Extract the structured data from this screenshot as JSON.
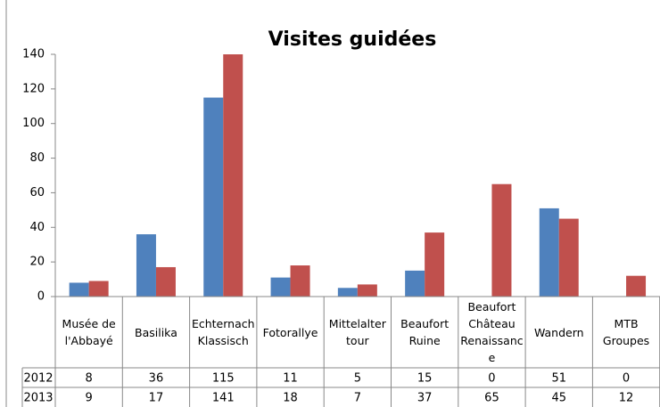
{
  "chart_data": {
    "type": "bar",
    "title": "Visites guidées",
    "categories": [
      "Musée de l'Abbayé",
      "Basilika",
      "Echternach Klassisch",
      "Fotorallye",
      "Mittelalter tour",
      "Beaufort Ruine",
      "Beaufort Château Renaissance",
      "Wandern",
      "MTB Groupes"
    ],
    "series": [
      {
        "name": "2012",
        "color": "#4f81bd",
        "values": [
          8,
          36,
          115,
          11,
          5,
          15,
          0,
          51,
          0
        ]
      },
      {
        "name": "2013",
        "color": "#c0504d",
        "values": [
          9,
          17,
          141,
          18,
          7,
          37,
          65,
          45,
          12
        ]
      }
    ],
    "ylim": [
      0,
      140
    ],
    "yticks": [
      0,
      20,
      40,
      60,
      80,
      100,
      120,
      140
    ],
    "grid": false
  }
}
